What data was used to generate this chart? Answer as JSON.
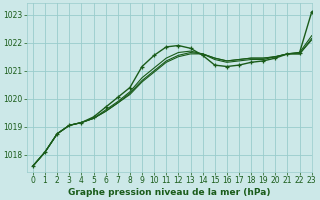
{
  "title": "Graphe pression niveau de la mer (hPa)",
  "bg_color": "#cce8e8",
  "grid_color": "#99cccc",
  "line_color": "#1a5c1a",
  "xlim": [
    -0.5,
    23
  ],
  "ylim": [
    1017.4,
    1023.4
  ],
  "yticks": [
    1018,
    1019,
    1020,
    1021,
    1022,
    1023
  ],
  "xticks": [
    0,
    1,
    2,
    3,
    4,
    5,
    6,
    7,
    8,
    9,
    10,
    11,
    12,
    13,
    14,
    15,
    16,
    17,
    18,
    19,
    20,
    21,
    22,
    23
  ],
  "series": [
    {
      "y": [
        1017.6,
        1018.1,
        1018.75,
        1019.05,
        1019.15,
        1019.35,
        1019.7,
        1020.05,
        1020.4,
        1021.15,
        1021.55,
        1021.85,
        1021.9,
        1021.8,
        1021.55,
        1021.2,
        1021.15,
        1021.2,
        1021.3,
        1021.35,
        1021.45,
        1021.6,
        1021.65,
        1023.1
      ],
      "marker": true,
      "lw": 1.0
    },
    {
      "y": [
        1017.6,
        1018.1,
        1018.75,
        1019.05,
        1019.15,
        1019.3,
        1019.6,
        1019.9,
        1020.25,
        1020.75,
        1021.1,
        1021.45,
        1021.65,
        1021.7,
        1021.6,
        1021.4,
        1021.3,
        1021.35,
        1021.4,
        1021.4,
        1021.5,
        1021.6,
        1021.65,
        1022.25
      ],
      "marker": false,
      "lw": 0.8
    },
    {
      "y": [
        1017.6,
        1018.1,
        1018.75,
        1019.05,
        1019.15,
        1019.3,
        1019.55,
        1019.85,
        1020.2,
        1020.65,
        1021.0,
        1021.35,
        1021.55,
        1021.65,
        1021.6,
        1021.45,
        1021.35,
        1021.4,
        1021.45,
        1021.45,
        1021.5,
        1021.6,
        1021.6,
        1022.15
      ],
      "marker": false,
      "lw": 0.8
    },
    {
      "y": [
        1017.6,
        1018.1,
        1018.75,
        1019.05,
        1019.15,
        1019.3,
        1019.55,
        1019.85,
        1020.15,
        1020.6,
        1020.95,
        1021.3,
        1021.5,
        1021.6,
        1021.6,
        1021.45,
        1021.35,
        1021.4,
        1021.45,
        1021.45,
        1021.5,
        1021.6,
        1021.6,
        1022.1
      ],
      "marker": false,
      "lw": 0.8
    }
  ],
  "tick_fontsize": 5.5,
  "xlabel_fontsize": 6.5
}
